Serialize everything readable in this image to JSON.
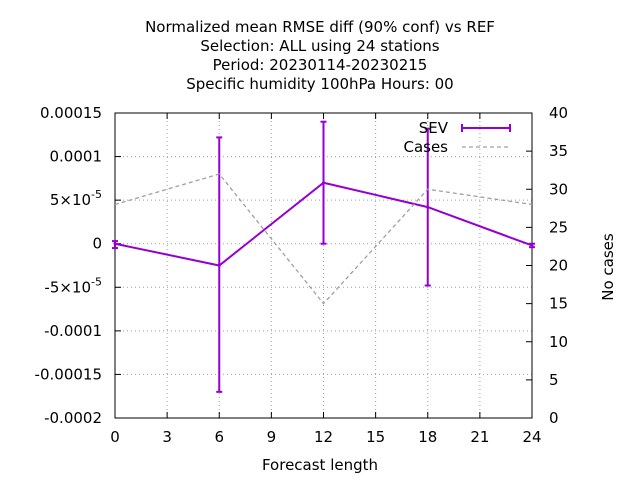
{
  "chart_data": {
    "type": "line",
    "title_lines": [
      "Normalized mean RMSE diff (90% conf) vs REF",
      "Selection: ALL using    24 stations",
      "Period: 20230114-20230215",
      "Specific humidity 100hPa   Hours:  00"
    ],
    "xlabel": "Forecast length",
    "ylabel_left": "",
    "ylabel_right": "No cases",
    "xlim": [
      0,
      24
    ],
    "ylim_left": [
      -0.0002,
      0.00015
    ],
    "ylim_right": [
      0,
      40
    ],
    "x_ticks": [
      0,
      3,
      6,
      9,
      12,
      15,
      18,
      21,
      24
    ],
    "x_tick_labels": [
      "0",
      "3",
      "6",
      "9",
      "12",
      "15",
      "18",
      "21",
      "24"
    ],
    "y_left_ticks": [
      0.00015,
      0.0001,
      5e-05,
      0,
      -5e-05,
      -0.0001,
      -0.00015,
      -0.0002
    ],
    "y_left_tick_labels": [
      {
        "base": "0.00015",
        "sup": ""
      },
      {
        "base": "0.0001",
        "sup": ""
      },
      {
        "base": "5×10",
        "sup": "-5"
      },
      {
        "base": "0",
        "sup": ""
      },
      {
        "base": "-5×10",
        "sup": "-5"
      },
      {
        "base": "-0.0001",
        "sup": ""
      },
      {
        "base": "-0.00015",
        "sup": ""
      },
      {
        "base": "-0.0002",
        "sup": ""
      }
    ],
    "y_right_ticks": [
      0,
      5,
      10,
      15,
      20,
      25,
      30,
      35,
      40
    ],
    "y_right_tick_labels": [
      "0",
      "5",
      "10",
      "15",
      "20",
      "25",
      "30",
      "35",
      "40"
    ],
    "grid": true,
    "legend_position": "top-right",
    "series": [
      {
        "name": "SEV",
        "axis": "left",
        "color": "#9400d3",
        "style": "line-errorbars",
        "x": [
          0,
          6,
          12,
          18,
          24
        ],
        "y": [
          0.0,
          -2.5e-05,
          7e-05,
          4.2e-05,
          -2e-06
        ],
        "err_low": [
          -5e-06,
          -0.00017,
          0.0,
          -4.8e-05,
          -4e-06
        ],
        "err_high": [
          3e-06,
          0.000122,
          0.00014,
          0.000132,
          0.0
        ]
      },
      {
        "name": "Cases",
        "axis": "right",
        "color": "#a0a0a0",
        "style": "dashed",
        "x": [
          0,
          6,
          12,
          18,
          24
        ],
        "y": [
          28,
          32,
          15,
          30,
          28
        ]
      }
    ]
  }
}
